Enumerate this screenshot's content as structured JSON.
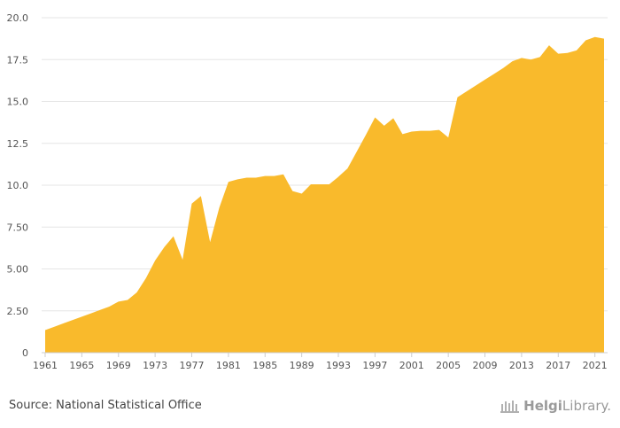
{
  "chart_data": {
    "type": "area",
    "title": "",
    "xlabel": "",
    "ylabel": "",
    "ylim": [
      0,
      20
    ],
    "grid": true,
    "legend": "none",
    "x_ticks": [
      1961,
      1965,
      1969,
      1973,
      1977,
      1981,
      1985,
      1989,
      1993,
      1997,
      2001,
      2005,
      2009,
      2013,
      2017,
      2021
    ],
    "y_ticks": [
      "0",
      "2.50",
      "5.00",
      "7.50",
      "10.0",
      "12.5",
      "15.0",
      "17.5",
      "20.0"
    ],
    "y_tick_values": [
      0,
      2.5,
      5,
      7.5,
      10,
      12.5,
      15,
      17.5,
      20
    ],
    "colors": {
      "area": "#F9BA2C",
      "grid": "#e6e6e6",
      "axis": "#cccccc"
    },
    "series": [
      {
        "x": [
          1961,
          1962,
          1963,
          1964,
          1965,
          1966,
          1967,
          1968,
          1969,
          1970,
          1971,
          1972,
          1973,
          1974,
          1975,
          1976,
          1977,
          1978,
          1979,
          1980,
          1981,
          1982,
          1983,
          1984,
          1985,
          1986,
          1987,
          1988,
          1989,
          1990,
          1991,
          1992,
          1993,
          1994,
          1995,
          1996,
          1997,
          1998,
          1999,
          2000,
          2001,
          2002,
          2003,
          2004,
          2005,
          2006,
          2007,
          2008,
          2009,
          2010,
          2011,
          2012,
          2013,
          2014,
          2015,
          2016,
          2017,
          2018,
          2019,
          2020,
          2021,
          2022
        ],
        "values": [
          1.35,
          1.55,
          1.75,
          1.95,
          2.15,
          2.35,
          2.55,
          2.75,
          3.05,
          3.15,
          3.6,
          4.45,
          5.5,
          6.3,
          6.95,
          5.55,
          8.9,
          9.35,
          6.6,
          8.65,
          10.2,
          10.35,
          10.45,
          10.45,
          10.55,
          10.55,
          10.65,
          9.65,
          9.5,
          10.05,
          10.05,
          10.05,
          10.5,
          11.0,
          12.0,
          13.0,
          14.05,
          13.55,
          14.0,
          13.05,
          13.2,
          13.25,
          13.25,
          13.3,
          12.85,
          15.25,
          15.6,
          15.95,
          16.3,
          16.65,
          17.0,
          17.4,
          17.6,
          17.5,
          17.65,
          18.35,
          17.85,
          17.9,
          18.05,
          18.65,
          18.85,
          18.75
        ]
      }
    ]
  },
  "footer": {
    "source": "Source: National Statistical Office",
    "logo_part1": "Helgi",
    "logo_part2": "Library."
  }
}
